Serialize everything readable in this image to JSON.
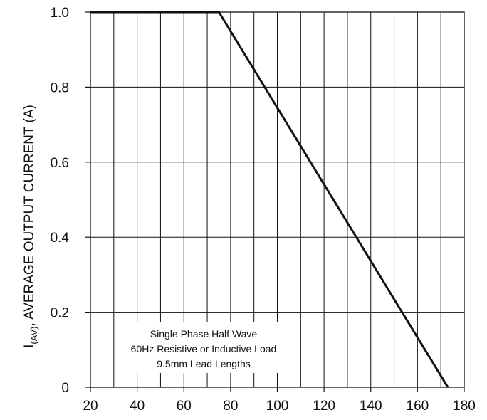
{
  "chart_data": {
    "type": "line",
    "title": "",
    "xlabel": "",
    "ylabel": {
      "prefix": "I",
      "subscript": "(AV)",
      "rest": ", AVERAGE OUTPUT CURRENT (A)"
    },
    "xlim": [
      20,
      180
    ],
    "ylim": [
      0,
      1.0
    ],
    "x_ticks": [
      20,
      40,
      60,
      80,
      100,
      120,
      140,
      160,
      180
    ],
    "y_ticks": [
      0,
      0.2,
      0.4,
      0.6,
      0.8,
      1.0
    ],
    "y_tick_labels": [
      "0",
      "0.2",
      "0.4",
      "0.6",
      "0.8",
      "1.0"
    ],
    "grid": true,
    "grid_x_step": 10,
    "series": [
      {
        "color": "#111111",
        "x": [
          20,
          75,
          173
        ],
        "y": [
          1.0,
          1.0,
          0
        ]
      }
    ],
    "annotation": [
      "Single Phase Half Wave",
      "60Hz Resistive or Inductive Load",
      "9.5mm Lead Lengths"
    ]
  }
}
